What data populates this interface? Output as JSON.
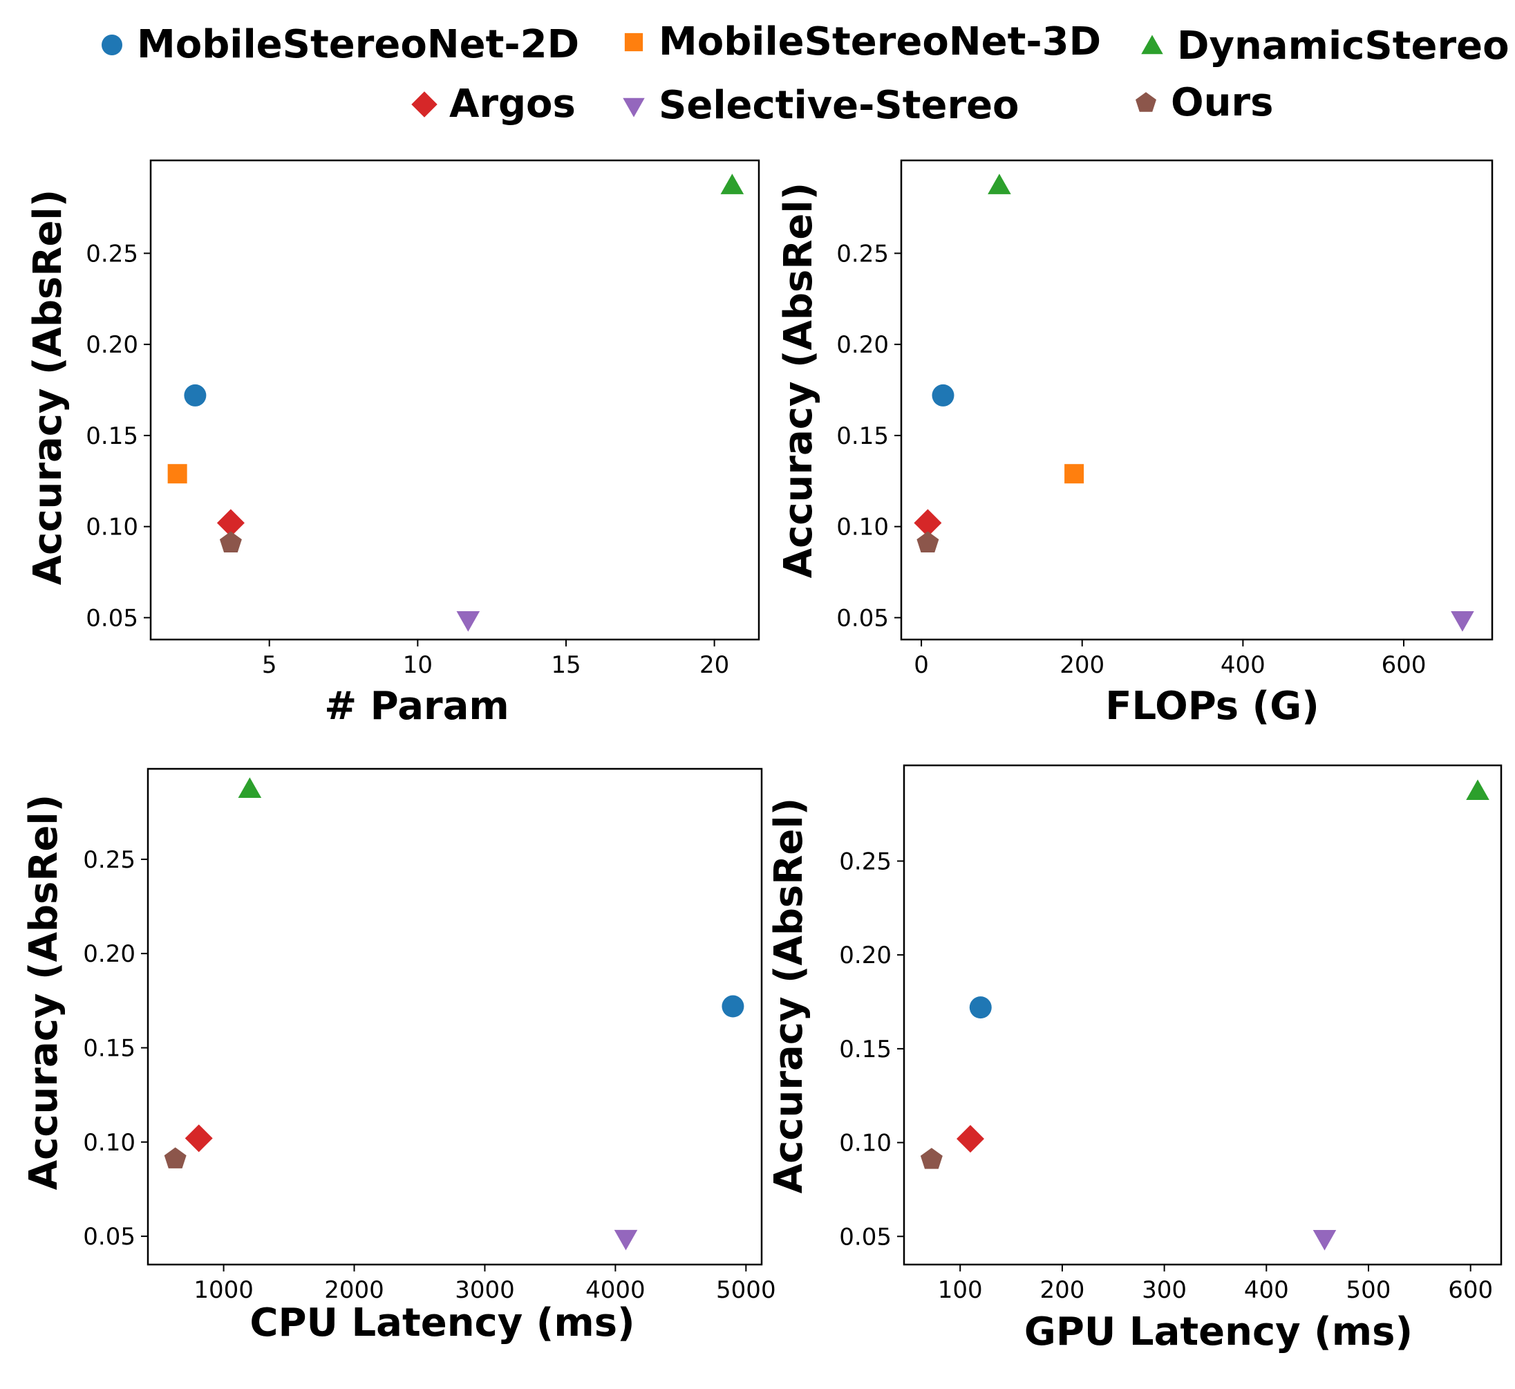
{
  "legend": {
    "items": [
      {
        "label": "MobileStereoNet-2D",
        "color": "#1f77b4",
        "marker": "circle"
      },
      {
        "label": "MobileStereoNet-3D",
        "color": "#ff7f0e",
        "marker": "square"
      },
      {
        "label": "DynamicStereo",
        "color": "#2ca02c",
        "marker": "triangle-up"
      },
      {
        "label": "Argos",
        "color": "#d62728",
        "marker": "diamond"
      },
      {
        "label": "Selective-Stereo",
        "color": "#9467bd",
        "marker": "triangle-down"
      },
      {
        "label": "Ours",
        "color": "#8c564b",
        "marker": "pentagon"
      }
    ]
  },
  "chart_data": [
    {
      "type": "scatter",
      "title": "",
      "xlabel": "# Param",
      "ylabel": "Accuracy (AbsRel)",
      "xlim": [
        1.0,
        21.5
      ],
      "ylim": [
        0.038,
        0.301
      ],
      "xticks": [
        5,
        10,
        15,
        20
      ],
      "xtick_labels": [
        "5",
        "10",
        "15",
        "20"
      ],
      "yticks": [
        0.05,
        0.1,
        0.15,
        0.2,
        0.25
      ],
      "ytick_labels": [
        "0.05",
        "0.10",
        "0.15",
        "0.20",
        "0.25"
      ],
      "grid": false,
      "points": [
        {
          "series": "MobileStereoNet-2D",
          "x": 2.5,
          "y": 0.172
        },
        {
          "series": "MobileStereoNet-3D",
          "x": 1.9,
          "y": 0.129
        },
        {
          "series": "DynamicStereo",
          "x": 20.6,
          "y": 0.287
        },
        {
          "series": "Argos",
          "x": 3.7,
          "y": 0.102
        },
        {
          "series": "Selective-Stereo",
          "x": 11.7,
          "y": 0.049
        },
        {
          "series": "Ours",
          "x": 3.7,
          "y": 0.091
        }
      ]
    },
    {
      "type": "scatter",
      "title": "",
      "xlabel": "FLOPs (G)",
      "ylabel": "Accuracy (AbsRel)",
      "xlim": [
        -25,
        710
      ],
      "ylim": [
        0.038,
        0.301
      ],
      "xticks": [
        0,
        200,
        400,
        600
      ],
      "xtick_labels": [
        "0",
        "200",
        "400",
        "600"
      ],
      "yticks": [
        0.05,
        0.1,
        0.15,
        0.2,
        0.25
      ],
      "ytick_labels": [
        "0.05",
        "0.10",
        "0.15",
        "0.20",
        "0.25"
      ],
      "grid": false,
      "points": [
        {
          "series": "MobileStereoNet-2D",
          "x": 27,
          "y": 0.172
        },
        {
          "series": "MobileStereoNet-3D",
          "x": 190,
          "y": 0.129
        },
        {
          "series": "DynamicStereo",
          "x": 97,
          "y": 0.287
        },
        {
          "series": "Argos",
          "x": 8,
          "y": 0.102
        },
        {
          "series": "Selective-Stereo",
          "x": 673,
          "y": 0.049
        },
        {
          "series": "Ours",
          "x": 8,
          "y": 0.091
        }
      ]
    },
    {
      "type": "scatter",
      "title": "",
      "xlabel": "CPU Latency (ms)",
      "ylabel": "Accuracy (AbsRel)",
      "xlim": [
        420,
        5120
      ],
      "ylim": [
        0.035,
        0.298
      ],
      "xticks": [
        1000,
        2000,
        3000,
        4000,
        5000
      ],
      "xtick_labels": [
        "1000",
        "2000",
        "3000",
        "4000",
        "5000"
      ],
      "yticks": [
        0.05,
        0.1,
        0.15,
        0.2,
        0.25
      ],
      "ytick_labels": [
        "0.05",
        "0.10",
        "0.15",
        "0.20",
        "0.25"
      ],
      "grid": false,
      "points": [
        {
          "series": "MobileStereoNet-2D",
          "x": 4900,
          "y": 0.172
        },
        {
          "series": "DynamicStereo",
          "x": 1200,
          "y": 0.287
        },
        {
          "series": "Argos",
          "x": 810,
          "y": 0.102
        },
        {
          "series": "Selective-Stereo",
          "x": 4080,
          "y": 0.049
        },
        {
          "series": "Ours",
          "x": 630,
          "y": 0.091
        }
      ]
    },
    {
      "type": "scatter",
      "title": "",
      "xlabel": "GPU Latency (ms)",
      "ylabel": "Accuracy (AbsRel)",
      "xlim": [
        45,
        630
      ],
      "ylim": [
        0.035,
        0.301
      ],
      "xticks": [
        100,
        200,
        300,
        400,
        500,
        600
      ],
      "xtick_labels": [
        "100",
        "200",
        "300",
        "400",
        "500",
        "600"
      ],
      "yticks": [
        0.05,
        0.1,
        0.15,
        0.2,
        0.25
      ],
      "ytick_labels": [
        "0.05",
        "0.10",
        "0.15",
        "0.20",
        "0.25"
      ],
      "grid": false,
      "points": [
        {
          "series": "MobileStereoNet-2D",
          "x": 120,
          "y": 0.172
        },
        {
          "series": "DynamicStereo",
          "x": 607,
          "y": 0.287
        },
        {
          "series": "Argos",
          "x": 110,
          "y": 0.102
        },
        {
          "series": "Selective-Stereo",
          "x": 457,
          "y": 0.049
        },
        {
          "series": "Ours",
          "x": 72,
          "y": 0.091
        }
      ]
    }
  ]
}
